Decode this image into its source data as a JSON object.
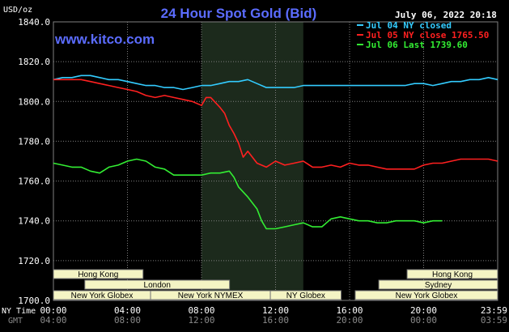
{
  "chart_data": {
    "type": "line",
    "title": "24 Hour Spot Gold (Bid)",
    "ylabel": "USD/oz",
    "watermark": "www.kitco.com",
    "timestamp": "July 06, 2022 20:18",
    "ylim": [
      1700,
      1840
    ],
    "yticks": [
      "1840.0",
      "1820.0",
      "1800.0",
      "1780.0",
      "1760.0",
      "1740.0",
      "1720.0",
      "1700.0"
    ],
    "xlim": [
      0,
      24
    ],
    "xlabel_row1": "NY Time",
    "xlabel_row2": "GMT",
    "xticks_ny": [
      "00:00",
      "04:00",
      "08:00",
      "12:00",
      "16:00",
      "20:00",
      "23:59"
    ],
    "xticks_gmt": [
      "04:00",
      "08:00",
      "12:00",
      "16:00",
      "20:00",
      "00:00",
      "03:59"
    ],
    "legend_position": "top-right",
    "series": [
      {
        "name": "Jul 04 NY closed",
        "color": "#33ccff",
        "x": [
          0,
          0.5,
          1,
          1.5,
          2,
          2.5,
          3,
          3.5,
          4,
          4.5,
          5,
          5.5,
          6,
          6.5,
          7,
          7.5,
          8,
          8.5,
          9,
          9.5,
          10,
          10.5,
          11,
          11.5,
          12,
          12.5,
          13,
          13.5,
          14,
          14.5,
          15,
          15.5,
          16,
          16.5,
          17,
          17.5,
          18,
          18.5,
          19,
          19.5,
          20,
          20.5,
          21,
          21.5,
          22,
          22.5,
          23,
          23.5,
          24
        ],
        "values": [
          1811,
          1812,
          1812,
          1813,
          1813,
          1812,
          1811,
          1811,
          1810,
          1809,
          1808,
          1808,
          1807,
          1807,
          1806,
          1807,
          1808,
          1808,
          1809,
          1810,
          1810,
          1811,
          1809,
          1807,
          1807,
          1807,
          1807,
          1808,
          1808,
          1808,
          1808,
          1808,
          1808,
          1808,
          1808,
          1808,
          1808,
          1808,
          1808,
          1809,
          1809,
          1808,
          1809,
          1810,
          1810,
          1811,
          1811,
          1812,
          1811
        ]
      },
      {
        "name": "Jul 05 NY close 1765.50",
        "color": "#ff2020",
        "x": [
          0,
          0.5,
          1,
          1.5,
          2,
          2.5,
          3,
          3.5,
          4,
          4.5,
          5,
          5.5,
          6,
          6.5,
          7,
          7.5,
          8,
          8.25,
          8.5,
          9,
          9.25,
          9.5,
          9.75,
          10,
          10.25,
          10.5,
          11,
          11.5,
          12,
          12.5,
          13,
          13.5,
          14,
          14.5,
          15,
          15.5,
          16,
          16.5,
          17,
          17.5,
          18,
          18.5,
          19,
          19.5,
          20,
          20.5,
          21,
          21.5,
          22,
          22.5,
          23,
          23.5,
          24
        ],
        "values": [
          1811,
          1811,
          1811,
          1811,
          1810,
          1809,
          1808,
          1807,
          1806,
          1805,
          1803,
          1802,
          1803,
          1802,
          1801,
          1800,
          1798,
          1802,
          1802,
          1797,
          1794,
          1788,
          1784,
          1779,
          1772,
          1775,
          1769,
          1767,
          1770,
          1768,
          1769,
          1770,
          1767,
          1767,
          1768,
          1767,
          1769,
          1768,
          1768,
          1767,
          1766,
          1766,
          1766,
          1766,
          1768,
          1769,
          1769,
          1770,
          1771,
          1771,
          1771,
          1771,
          1770
        ]
      },
      {
        "name": "Jul 06 Last 1739.60",
        "color": "#33ee33",
        "x": [
          0,
          0.5,
          1,
          1.5,
          2,
          2.5,
          3,
          3.5,
          4,
          4.5,
          5,
          5.5,
          6,
          6.5,
          7,
          7.5,
          8,
          8.5,
          9,
          9.5,
          9.75,
          10,
          10.5,
          11,
          11.25,
          11.5,
          12,
          12.5,
          13,
          13.5,
          14,
          14.5,
          15,
          15.5,
          16,
          16.5,
          17,
          17.5,
          18,
          18.5,
          19,
          19.5,
          20,
          20.5,
          21
        ],
        "values": [
          1769,
          1768,
          1767,
          1767,
          1765,
          1764,
          1767,
          1768,
          1770,
          1771,
          1770,
          1767,
          1766,
          1763,
          1763,
          1763,
          1763,
          1764,
          1764,
          1765,
          1762,
          1757,
          1752,
          1746,
          1740,
          1736,
          1736,
          1737,
          1738,
          1739,
          1737,
          1737,
          1741,
          1742,
          1741,
          1740,
          1740,
          1739,
          1739,
          1740,
          1740,
          1740,
          1739,
          1740,
          1740
        ]
      }
    ]
  },
  "sessions": [
    {
      "label": "Hong Kong",
      "row": 1,
      "start": 0,
      "end": 9.5
    },
    {
      "label": "London",
      "row": 2,
      "start": 3.33,
      "end": 18.67
    },
    {
      "label": "New York Globex",
      "row": 3,
      "start": 0,
      "end": 10.3
    },
    {
      "label": "New York NYMEX",
      "row": 3,
      "start": 10.3,
      "end": 23
    },
    {
      "label": "NY Globex",
      "row": 3,
      "start": 23,
      "end": 30.5
    },
    {
      "label": "Hong Kong",
      "row": 1,
      "start": 37.5,
      "end": 47.1
    },
    {
      "label": "Sydney",
      "row": 2,
      "start": 34.5,
      "end": 47.1
    },
    {
      "label": "New York Globex",
      "row": 3,
      "start": 32,
      "end": 47.1
    }
  ],
  "shade_range": [
    8,
    13.5
  ],
  "colors": {
    "background": "#000000",
    "grid": "#7f7f7f",
    "title": "#5b6cff",
    "watermark": "#5b6cff",
    "shade": "#1c2a1c",
    "session_fill": "#f4f4c4"
  }
}
